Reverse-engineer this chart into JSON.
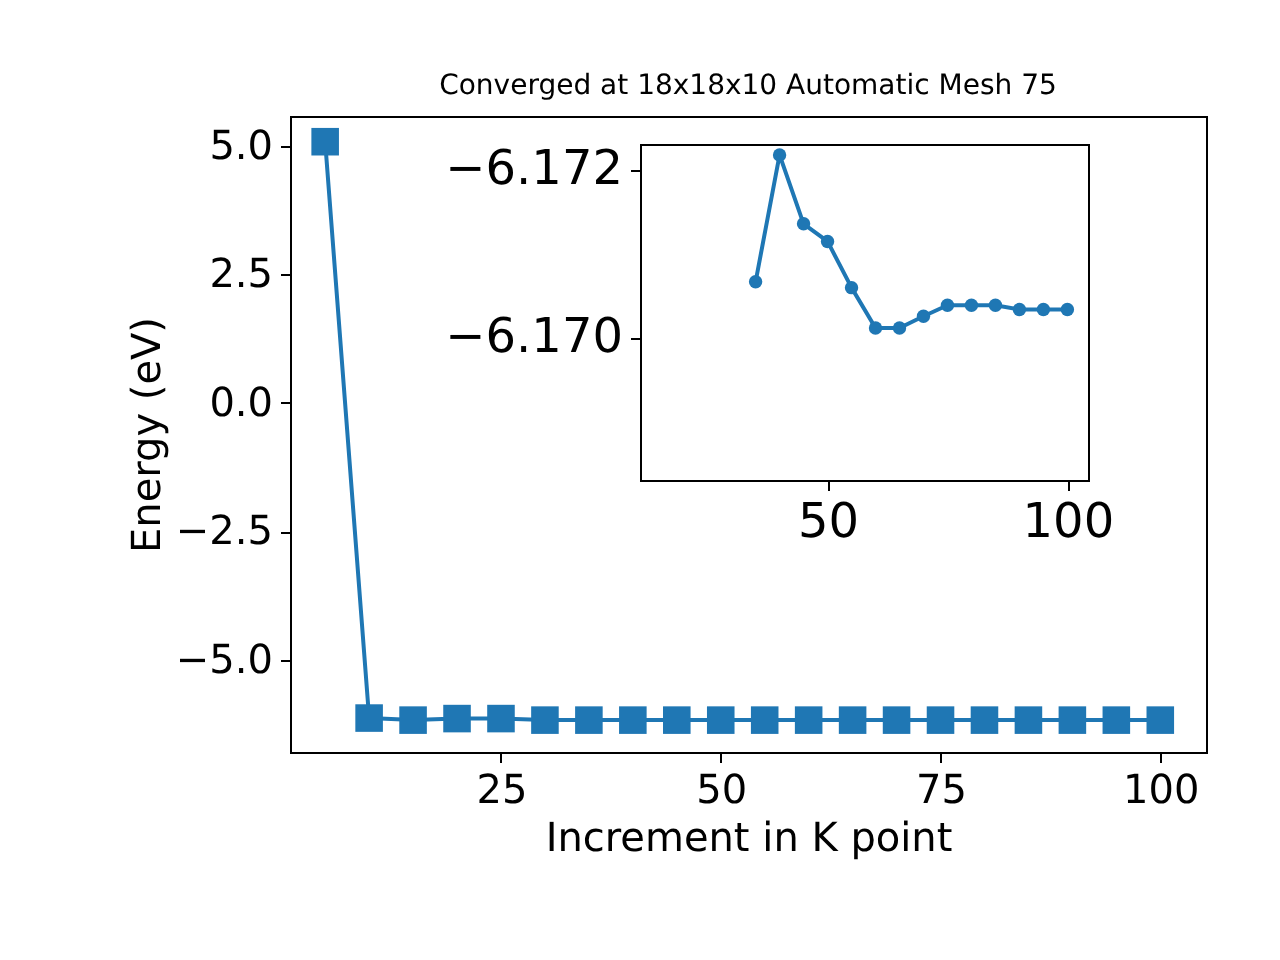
{
  "chart_data": [
    {
      "type": "line",
      "title": "Converged at 18x18x10 Automatic Mesh 75",
      "xlabel": "Increment in K point",
      "ylabel": "Energy (eV)",
      "marker": "square",
      "x": [
        5,
        10,
        15,
        20,
        25,
        30,
        35,
        40,
        45,
        50,
        55,
        60,
        65,
        70,
        75,
        80,
        85,
        90,
        95,
        100
      ],
      "series": [
        {
          "color": "#1f77b4",
          "values": [
            5.08,
            -6.13,
            -6.17,
            -6.14,
            -6.14,
            -6.17,
            -6.17,
            -6.17,
            -6.17,
            -6.17,
            -6.17,
            -6.17,
            -6.17,
            -6.17,
            -6.17,
            -6.17,
            -6.17,
            -6.17,
            -6.17,
            -6.17
          ]
        }
      ],
      "xlim": [
        1,
        105.2
      ],
      "ylim": [
        -6.79,
        5.58
      ],
      "xticks": [
        25,
        50,
        75,
        100
      ],
      "yticks": [
        {
          "value": 5,
          "label": "5.0"
        },
        {
          "value": 2.5,
          "label": "2.5"
        },
        {
          "value": 0,
          "label": "0.0"
        },
        {
          "value": -2.5,
          "label": "−2.5"
        },
        {
          "value": -5,
          "label": "−5.0"
        }
      ]
    },
    {
      "type": "line",
      "marker": "circle",
      "x": [
        35,
        40,
        45,
        50,
        55,
        60,
        65,
        70,
        75,
        80,
        85,
        90,
        95,
        100
      ],
      "series": [
        {
          "color": "#1f77b4",
          "values": [
            -6.17066,
            -6.17217,
            -6.17135,
            -6.17114,
            -6.17059,
            -6.17011,
            -6.17011,
            -6.17025,
            -6.17038,
            -6.17038,
            -6.17038,
            -6.17033,
            -6.17033,
            -6.17033
          ]
        }
      ],
      "xlim": [
        10.9,
        104.3
      ],
      "ylim": [
        -6.1683,
        -6.1723
      ],
      "xticks": [
        50,
        100
      ],
      "yticks": [
        {
          "value": -6.172,
          "label": "−6.172"
        },
        {
          "value": -6.17,
          "label": "−6.170"
        }
      ]
    }
  ]
}
